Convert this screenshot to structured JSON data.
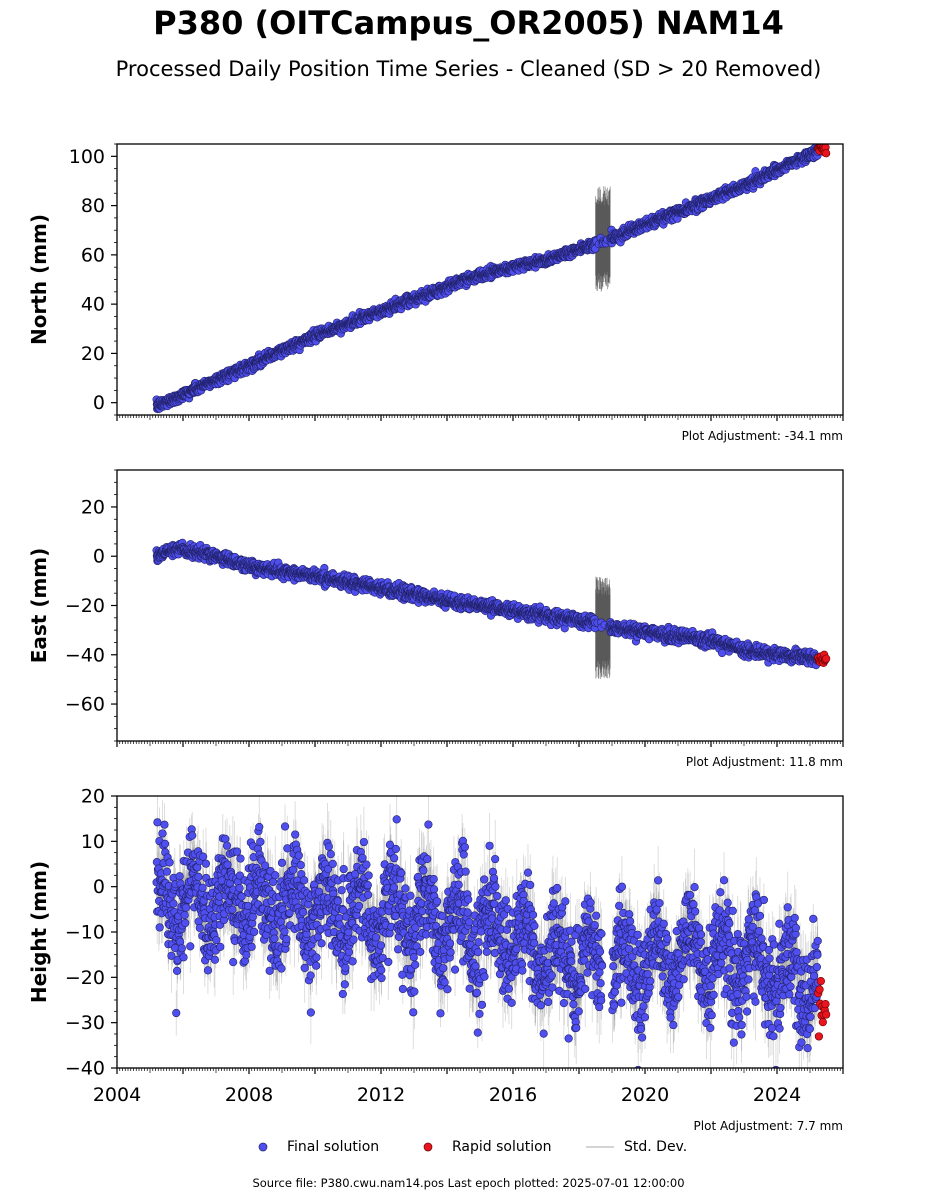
{
  "header": {
    "title": "P380 (OITCampus_OR2005) NAM14",
    "subtitle": "Processed Daily Position Time Series - Cleaned (SD > 20 Removed)"
  },
  "legend": {
    "final_label": "Final solution",
    "rapid_label": "Rapid solution",
    "std_label": "Std. Dev."
  },
  "footer": {
    "source": "Source file: P380.cwu.nam14.pos  Last epoch plotted: 2025-07-01 12:00:00"
  },
  "colors": {
    "final": "#4f4fef",
    "final_edge": "#22226a",
    "rapid": "#e8141e",
    "std": "#444444"
  },
  "chart_data": [
    {
      "type": "scatter",
      "ylabel": "North (mm)",
      "ylim": [
        -5,
        105
      ],
      "xlim": [
        2004,
        2026
      ],
      "yticks": [
        0,
        20,
        40,
        60,
        80,
        100
      ],
      "ytick_labels": [
        "0",
        "20",
        "40",
        "60",
        "80",
        "100"
      ],
      "adjustment": "Plot Adjustment: -34.1 mm",
      "trend": [
        [
          2005.2,
          -1.5
        ],
        [
          2010,
          27
        ],
        [
          2015,
          52
        ],
        [
          2017,
          58
        ],
        [
          2018.6,
          65
        ],
        [
          2020,
          72
        ],
        [
          2023,
          88
        ],
        [
          2025.3,
          102.5
        ]
      ],
      "scatter_sd": 1.0,
      "std_spread": 1.5,
      "noisy_period": [
        2018.5,
        2018.95
      ],
      "noisy_range": [
        45,
        88
      ],
      "gaps": [],
      "rapid": {
        "x": [
          2025.25,
          2025.5
        ],
        "center": 103,
        "spread": 1.0
      }
    },
    {
      "type": "scatter",
      "ylabel": "East (mm)",
      "ylim": [
        -75,
        35
      ],
      "xlim": [
        2004,
        2026
      ],
      "yticks": [
        -60,
        -40,
        -20,
        0,
        20
      ],
      "ytick_labels": [
        "−60",
        "−40",
        "−20",
        "0",
        "20"
      ],
      "adjustment": "Plot Adjustment: 11.8 mm",
      "trend": [
        [
          2005.2,
          0
        ],
        [
          2005.8,
          3
        ],
        [
          2007,
          0
        ],
        [
          2008,
          -4
        ],
        [
          2010,
          -8
        ],
        [
          2012,
          -13
        ],
        [
          2014,
          -18
        ],
        [
          2016,
          -22
        ],
        [
          2018.5,
          -27
        ],
        [
          2019,
          -29
        ],
        [
          2020,
          -31
        ],
        [
          2022,
          -34
        ],
        [
          2023,
          -38
        ],
        [
          2025.3,
          -42
        ]
      ],
      "scatter_sd": 1.2,
      "std_spread": 1.5,
      "noisy_period": [
        2018.5,
        2018.95
      ],
      "noisy_range": [
        -50,
        -8
      ],
      "gaps": [],
      "rapid": {
        "x": [
          2025.25,
          2025.5
        ],
        "center": -42,
        "spread": 1.2
      }
    },
    {
      "type": "scatter",
      "ylabel": "Height (mm)",
      "ylim": [
        -40,
        20
      ],
      "xlim": [
        2004,
        2026
      ],
      "yticks": [
        -40,
        -30,
        -20,
        -10,
        0,
        10,
        20
      ],
      "ytick_labels": [
        "−40",
        "−30",
        "−20",
        "−10",
        "0",
        "10",
        "20"
      ],
      "xticks": [
        2004,
        2008,
        2012,
        2016,
        2020,
        2024
      ],
      "xtick_labels": [
        "2004",
        "2008",
        "2012",
        "2016",
        "2020",
        "2024"
      ],
      "adjustment": "Plot Adjustment: 7.7 mm",
      "trend": [
        [
          2005.2,
          -2
        ],
        [
          2010,
          -5
        ],
        [
          2014,
          -7
        ],
        [
          2016,
          -12
        ],
        [
          2018,
          -17
        ],
        [
          2019,
          -18
        ],
        [
          2022,
          -15
        ],
        [
          2025.3,
          -22
        ]
      ],
      "scatter_sd": 5.5,
      "seasonal_amp": 6,
      "std_spread": 6,
      "noisy_period": null,
      "noisy_range": null,
      "gaps": [
        [
          2018.7,
          2019.0
        ]
      ],
      "rapid": {
        "x": [
          2025.25,
          2025.5
        ],
        "center": -27,
        "spread": 3
      }
    }
  ]
}
